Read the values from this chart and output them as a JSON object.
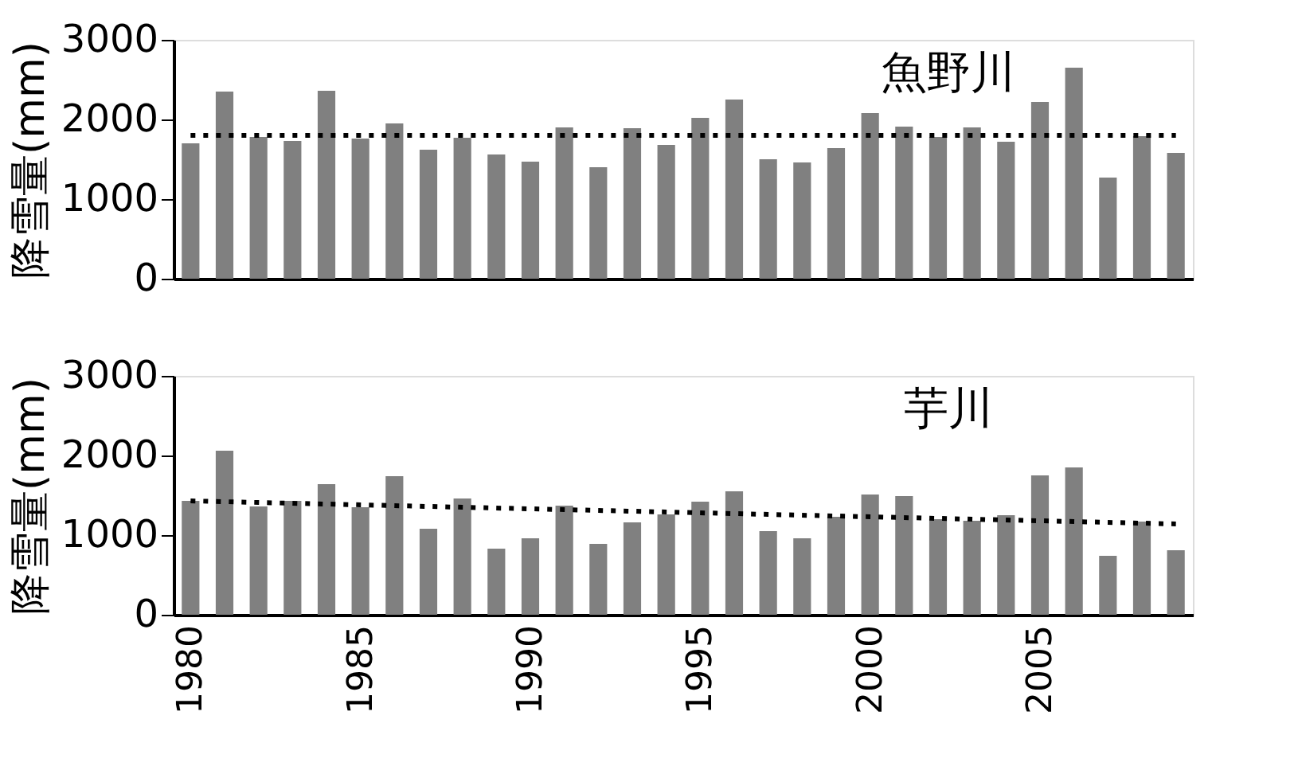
{
  "chart_data": [
    {
      "type": "bar",
      "ylabel": "降雪量(mm)",
      "annotations": [
        "魚野川"
      ],
      "categories": [
        "1980",
        null,
        null,
        null,
        null,
        "1985",
        null,
        null,
        null,
        null,
        "1990",
        null,
        null,
        null,
        null,
        "1995",
        null,
        null,
        null,
        null,
        "2000",
        null,
        null,
        null,
        null,
        "2005",
        null,
        null,
        null,
        null
      ],
      "ylim": [
        0,
        3000
      ],
      "yticks": [
        0,
        1000,
        2000,
        3000
      ],
      "tick_labels": "y",
      "grid": false,
      "series": [
        {
          "color": "#808080",
          "values": [
            1700,
            2350,
            1780,
            1730,
            2360,
            1760,
            1950,
            1620,
            1770,
            1560,
            1470,
            1900,
            1400,
            1890,
            1680,
            2020,
            2250,
            1500,
            1460,
            1640,
            2080,
            1910,
            1780,
            1900,
            1720,
            2220,
            2650,
            1270,
            1790,
            1580
          ]
        },
        {
          "type": "line",
          "color": "#000000",
          "line_style": "dotted",
          "values": [
            1800,
            1800,
            1800,
            1800,
            1800,
            1800,
            1800,
            1800,
            1800,
            1800,
            1800,
            1800,
            1800,
            1800,
            1800,
            1800,
            1800,
            1800,
            1800,
            1800,
            1800,
            1800,
            1800,
            1800,
            1800,
            1800,
            1800,
            1800,
            1800,
            1800
          ]
        }
      ]
    },
    {
      "type": "bar",
      "ylabel": "降雪量(mm)",
      "annotations": [
        "芋川"
      ],
      "categories": [
        "1980",
        null,
        null,
        null,
        null,
        "1985",
        null,
        null,
        null,
        null,
        "1990",
        null,
        null,
        null,
        null,
        "1995",
        null,
        null,
        null,
        null,
        "2000",
        null,
        null,
        null,
        null,
        "2005",
        null,
        null,
        null,
        null
      ],
      "ylim": [
        0,
        3000
      ],
      "yticks": [
        0,
        1000,
        2000,
        3000
      ],
      "grid": false,
      "series": [
        {
          "color": "#808080",
          "values": [
            1430,
            2060,
            1360,
            1430,
            1640,
            1350,
            1740,
            1080,
            1460,
            830,
            960,
            1370,
            890,
            1160,
            1260,
            1420,
            1550,
            1050,
            960,
            1230,
            1510,
            1490,
            1200,
            1180,
            1250,
            1750,
            1850,
            740,
            1170,
            810
          ]
        },
        {
          "type": "line",
          "color": "#000000",
          "line_style": "dotted",
          "values": [
            1430,
            1420,
            1410,
            1400,
            1390,
            1380,
            1370,
            1360,
            1350,
            1340,
            1330,
            1320,
            1310,
            1300,
            1290,
            1280,
            1270,
            1260,
            1250,
            1240,
            1230,
            1220,
            1210,
            1200,
            1190,
            1180,
            1170,
            1160,
            1150,
            1140
          ]
        }
      ]
    }
  ]
}
